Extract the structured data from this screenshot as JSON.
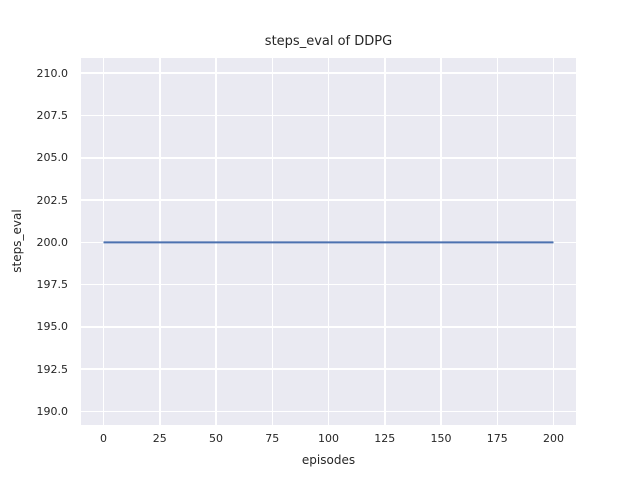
{
  "chart_data": {
    "type": "line",
    "title": "steps_eval of DDPG",
    "xlabel": "episodes",
    "ylabel": "steps_eval",
    "xlim": [
      -10,
      210
    ],
    "ylim": [
      189.2,
      210.9
    ],
    "x_ticks": [
      0,
      25,
      50,
      75,
      100,
      125,
      150,
      175,
      200
    ],
    "x_tick_labels": [
      "0",
      "25",
      "50",
      "75",
      "100",
      "125",
      "150",
      "175",
      "200"
    ],
    "y_ticks": [
      190.0,
      192.5,
      195.0,
      197.5,
      200.0,
      202.5,
      205.0,
      207.5,
      210.0
    ],
    "y_tick_labels": [
      "190.0",
      "192.5",
      "195.0",
      "197.5",
      "200.0",
      "202.5",
      "205.0",
      "207.5",
      "210.0"
    ],
    "grid": true,
    "legend": false,
    "series": [
      {
        "name": "steps_eval",
        "color": "#4c72b0",
        "x": [
          0,
          200
        ],
        "y": [
          200,
          200
        ]
      }
    ],
    "colors": {
      "plot_background": "#eaeaf2",
      "grid": "#ffffff",
      "text": "#262626",
      "line": "#4c72b0",
      "figure_background": "#ffffff"
    }
  }
}
